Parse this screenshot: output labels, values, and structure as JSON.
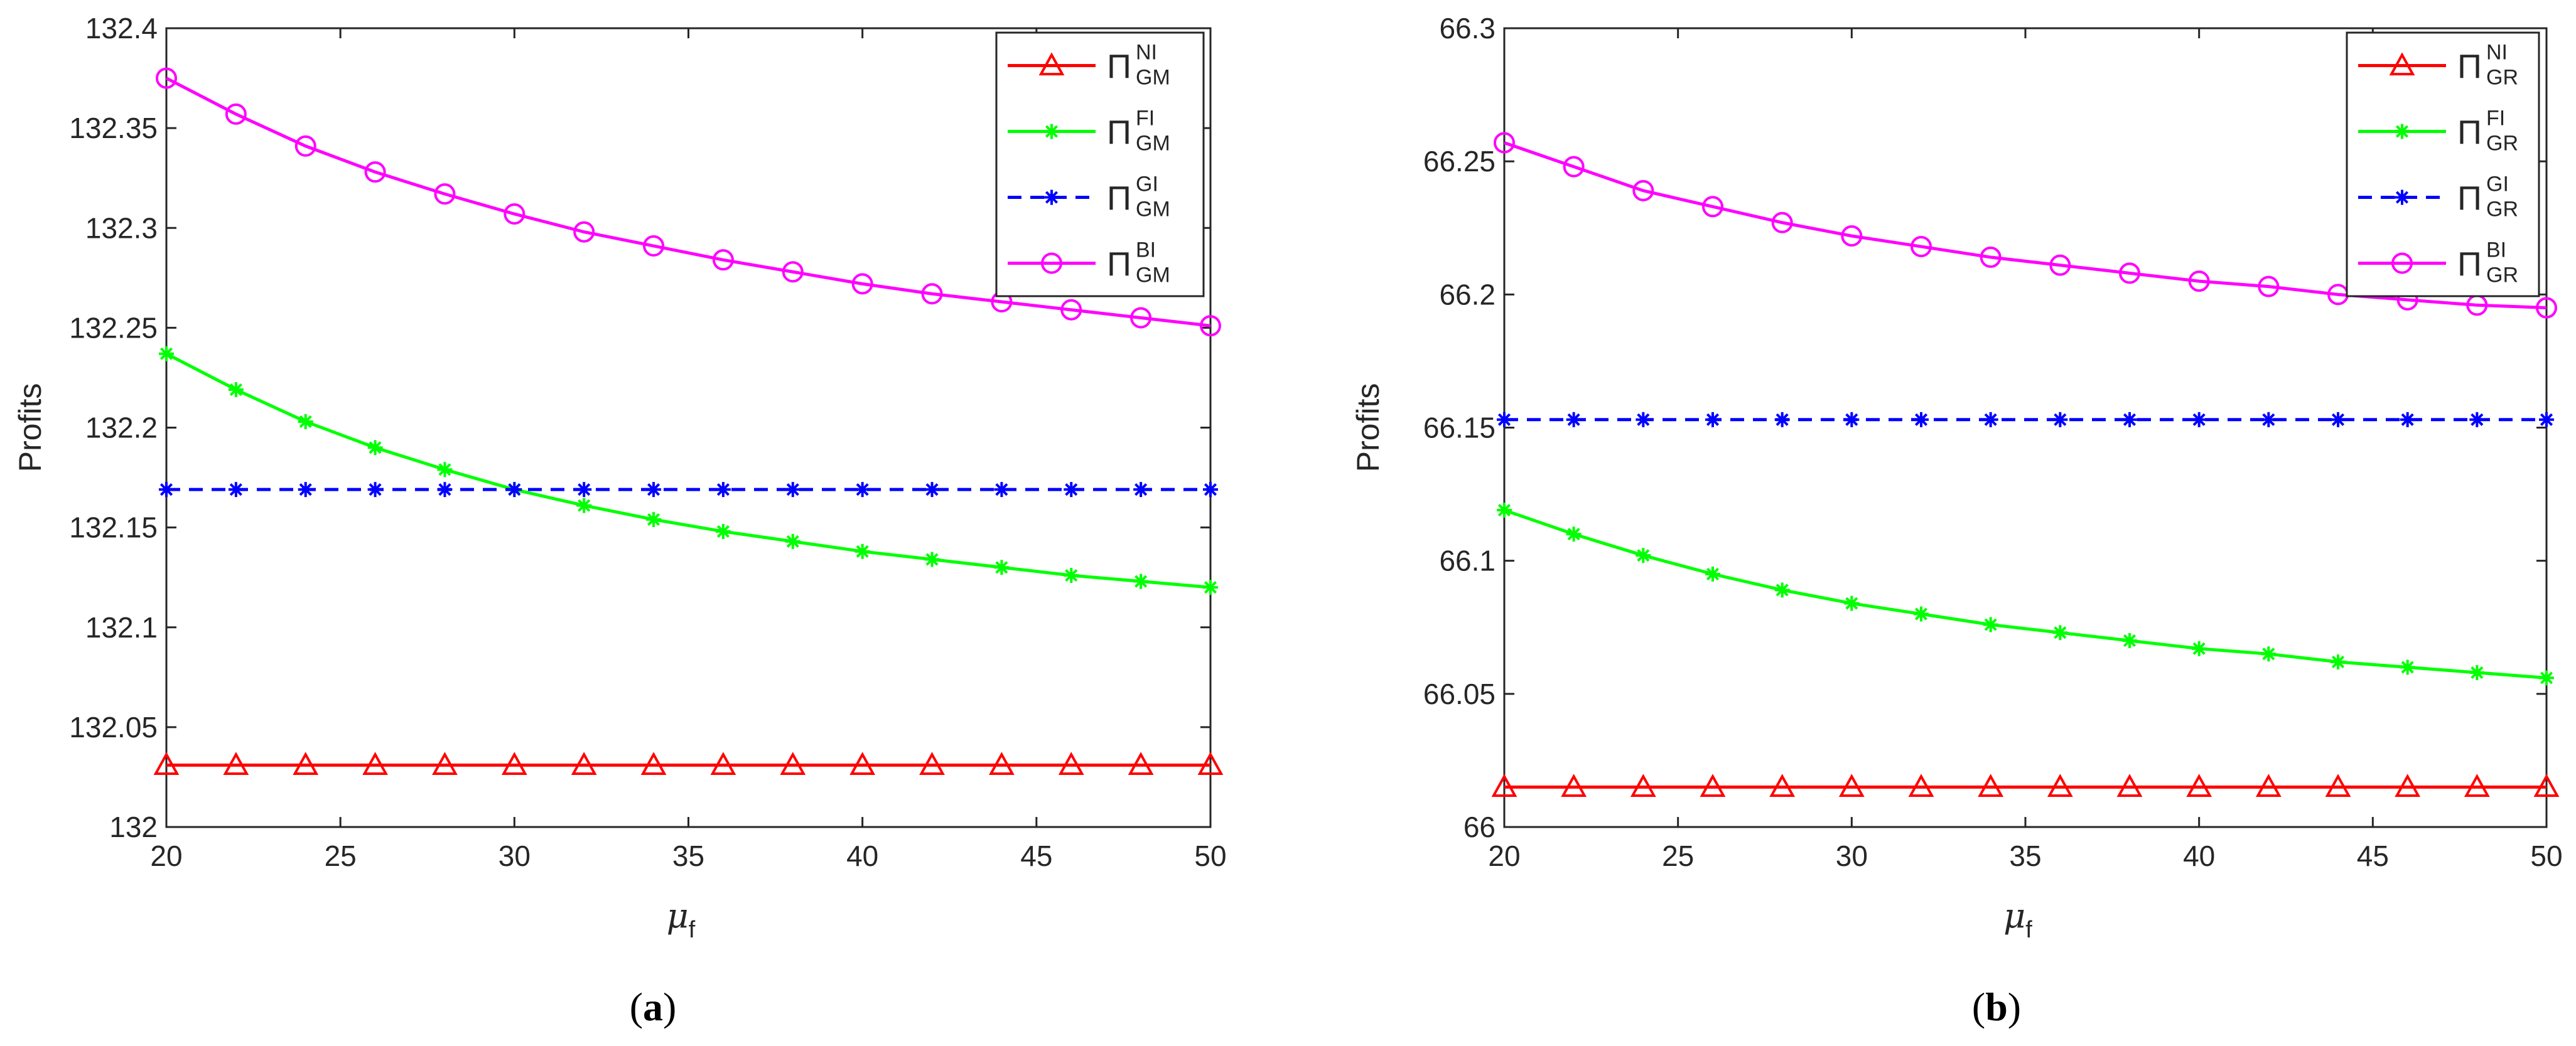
{
  "figure": {
    "captions": [
      "(a)",
      "(b)"
    ]
  },
  "chart_data": [
    {
      "type": "line",
      "panel": "a",
      "caption_letter": "a",
      "xlabel": "μ",
      "xlabel_sub": "f",
      "ylabel": "Profits",
      "xlim": [
        20,
        50
      ],
      "ylim": [
        132,
        132.4
      ],
      "xticks": [
        20,
        25,
        30,
        35,
        40,
        45,
        50
      ],
      "xtick_labels": [
        "20",
        "25",
        "30",
        "35",
        "40",
        "45",
        "50"
      ],
      "yticks": [
        132,
        132.05,
        132.1,
        132.15,
        132.2,
        132.25,
        132.3,
        132.35,
        132.4
      ],
      "ytick_labels": [
        "132",
        "132.05",
        "132.1",
        "132.15",
        "132.2",
        "132.25",
        "132.3",
        "132.35",
        "132.4"
      ],
      "x": [
        20,
        22,
        24,
        26,
        28,
        30,
        32,
        34,
        36,
        38,
        40,
        42,
        44,
        46,
        48,
        50
      ],
      "legend_position": "top-right",
      "series": [
        {
          "name": "Π",
          "sup": "NI",
          "sub": "GM",
          "color": "#ff0000",
          "marker": "triangle",
          "dash": "solid",
          "values": [
            132.031,
            132.031,
            132.031,
            132.031,
            132.031,
            132.031,
            132.031,
            132.031,
            132.031,
            132.031,
            132.031,
            132.031,
            132.031,
            132.031,
            132.031,
            132.031
          ]
        },
        {
          "name": "Π",
          "sup": "FI",
          "sub": "GM",
          "color": "#00ff00",
          "marker": "asterisk",
          "dash": "solid",
          "values": [
            132.237,
            132.219,
            132.203,
            132.19,
            132.179,
            132.169,
            132.161,
            132.154,
            132.148,
            132.143,
            132.138,
            132.134,
            132.13,
            132.126,
            132.123,
            132.12
          ]
        },
        {
          "name": "Π",
          "sup": "GI",
          "sub": "GM",
          "color": "#0000ff",
          "marker": "asterisk",
          "dash": "dashed",
          "values": [
            132.169,
            132.169,
            132.169,
            132.169,
            132.169,
            132.169,
            132.169,
            132.169,
            132.169,
            132.169,
            132.169,
            132.169,
            132.169,
            132.169,
            132.169,
            132.169
          ]
        },
        {
          "name": "Π",
          "sup": "BI",
          "sub": "GM",
          "color": "#ff00ff",
          "marker": "circle",
          "dash": "solid",
          "values": [
            132.375,
            132.357,
            132.341,
            132.328,
            132.317,
            132.307,
            132.298,
            132.291,
            132.284,
            132.278,
            132.272,
            132.267,
            132.263,
            132.259,
            132.255,
            132.251
          ]
        }
      ]
    },
    {
      "type": "line",
      "panel": "b",
      "caption_letter": "b",
      "xlabel": "μ",
      "xlabel_sub": "f",
      "ylabel": "Profits",
      "xlim": [
        20,
        50
      ],
      "ylim": [
        66,
        66.3
      ],
      "xticks": [
        20,
        25,
        30,
        35,
        40,
        45,
        50
      ],
      "xtick_labels": [
        "20",
        "25",
        "30",
        "35",
        "40",
        "45",
        "50"
      ],
      "yticks": [
        66,
        66.05,
        66.1,
        66.15,
        66.2,
        66.25,
        66.3
      ],
      "ytick_labels": [
        "66",
        "66.05",
        "66.1",
        "66.15",
        "66.2",
        "66.25",
        "66.3"
      ],
      "x": [
        20,
        22,
        24,
        26,
        28,
        30,
        32,
        34,
        36,
        38,
        40,
        42,
        44,
        46,
        48,
        50
      ],
      "legend_position": "top-right",
      "series": [
        {
          "name": "Π",
          "sup": "NI",
          "sub": "GR",
          "color": "#ff0000",
          "marker": "triangle",
          "dash": "solid",
          "values": [
            66.015,
            66.015,
            66.015,
            66.015,
            66.015,
            66.015,
            66.015,
            66.015,
            66.015,
            66.015,
            66.015,
            66.015,
            66.015,
            66.015,
            66.015,
            66.015
          ]
        },
        {
          "name": "Π",
          "sup": "FI",
          "sub": "GR",
          "color": "#00ff00",
          "marker": "asterisk",
          "dash": "solid",
          "values": [
            66.119,
            66.11,
            66.102,
            66.095,
            66.089,
            66.084,
            66.08,
            66.076,
            66.073,
            66.07,
            66.067,
            66.065,
            66.062,
            66.06,
            66.058,
            66.056
          ]
        },
        {
          "name": "Π",
          "sup": "GI",
          "sub": "GR",
          "color": "#0000ff",
          "marker": "asterisk",
          "dash": "dashed",
          "values": [
            66.153,
            66.153,
            66.153,
            66.153,
            66.153,
            66.153,
            66.153,
            66.153,
            66.153,
            66.153,
            66.153,
            66.153,
            66.153,
            66.153,
            66.153,
            66.153
          ]
        },
        {
          "name": "Π",
          "sup": "BI",
          "sub": "GR",
          "color": "#ff00ff",
          "marker": "circle",
          "dash": "solid",
          "values": [
            66.257,
            66.248,
            66.239,
            66.233,
            66.227,
            66.222,
            66.218,
            66.214,
            66.211,
            66.208,
            66.205,
            66.203,
            66.2,
            66.198,
            66.196,
            66.195
          ]
        }
      ]
    }
  ]
}
